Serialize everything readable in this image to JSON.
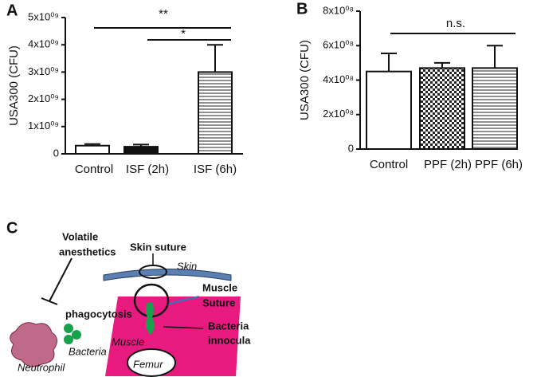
{
  "chart_data": [
    {
      "type": "bar",
      "panel": "A",
      "ylabel": "USA300 (CFU)",
      "categories": [
        "Control",
        "ISF (2h)",
        "ISF (6h)"
      ],
      "values": [
        300000000,
        260000000,
        3000000000
      ],
      "errors": [
        60000000,
        80000000,
        1000000000
      ],
      "fills": [
        "white",
        "black",
        "hlines"
      ],
      "ylim": [
        0,
        5000000000
      ],
      "yticks": [
        0,
        {
          "value": 1000000000,
          "label": "1x10⁰⁹"
        },
        {
          "value": 2000000000,
          "label": "2x10⁰⁹"
        },
        {
          "value": 3000000000,
          "label": "3x10⁰⁹"
        },
        {
          "value": 4000000000,
          "label": "4x10⁰⁹"
        },
        {
          "value": 5000000000,
          "label": "5x10⁰⁹"
        }
      ],
      "annotations": [
        "**",
        "*"
      ]
    },
    {
      "type": "bar",
      "panel": "B",
      "ylabel": "USA300 (CFU)",
      "categories": [
        "Control",
        "PPF (2h)",
        "PPF (6h)"
      ],
      "values": [
        450000000,
        470000000,
        470000000
      ],
      "errors": [
        105000000,
        30000000,
        130000000
      ],
      "fills": [
        "white",
        "checker",
        "hlines"
      ],
      "ylim": [
        0,
        800000000
      ],
      "yticks": [
        0,
        {
          "value": 200000000,
          "label": "2x10⁰⁸"
        },
        {
          "value": 400000000,
          "label": "4x10⁰⁸"
        },
        {
          "value": 600000000,
          "label": "6x10⁰⁸"
        },
        {
          "value": 800000000,
          "label": "8x10⁰⁸"
        }
      ],
      "annotations": [
        "n.s."
      ]
    }
  ],
  "diagram": {
    "panel": "C",
    "labels": [
      "Volatile",
      "anesthetics",
      "Skin suture",
      "Skin",
      "Muscle",
      "Suture",
      "phagocytosis",
      "Bacteria",
      "innocula",
      "Bacteria",
      "Muscle",
      "Neutrophil",
      "Femur"
    ]
  }
}
